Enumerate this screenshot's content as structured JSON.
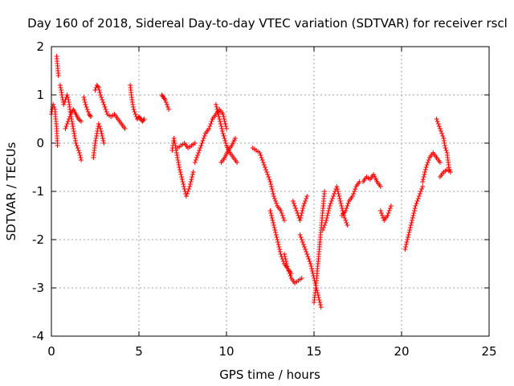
{
  "chart_data": {
    "type": "scatter",
    "title": "Day 160 of 2018, Sidereal Day-to-day VTEC variation (SDTVAR) for receiver rscl",
    "xlabel": "GPS time / hours",
    "ylabel": "SDTVAR / TECUs",
    "xlim": [
      0,
      25
    ],
    "ylim": [
      -4,
      2
    ],
    "xticks": [
      "0",
      "5",
      "10",
      "15",
      "20",
      "25"
    ],
    "yticks": [
      "2",
      "1",
      "0",
      "-1",
      "-2",
      "-3",
      "-4"
    ],
    "grid": true,
    "marker": "+",
    "color": "#ff0000",
    "segments": [
      {
        "x": [
          0.0,
          0.1,
          0.2,
          0.3,
          0.35
        ],
        "y": [
          0.6,
          0.8,
          0.7,
          0.3,
          -0.05
        ]
      },
      {
        "x": [
          0.3,
          0.35,
          0.4
        ],
        "y": [
          1.8,
          1.6,
          1.4
        ]
      },
      {
        "x": [
          0.5,
          0.6,
          0.7,
          0.8,
          0.9,
          1.0,
          1.1,
          1.2,
          1.3,
          1.4,
          1.5,
          1.6,
          1.7
        ],
        "y": [
          1.2,
          1.0,
          0.8,
          0.9,
          1.0,
          0.85,
          0.6,
          0.4,
          0.2,
          0.0,
          -0.1,
          -0.2,
          -0.35
        ]
      },
      {
        "x": [
          0.8,
          0.95,
          1.1,
          1.25,
          1.4,
          1.55,
          1.7
        ],
        "y": [
          0.3,
          0.45,
          0.6,
          0.7,
          0.6,
          0.5,
          0.45
        ]
      },
      {
        "x": [
          1.85,
          1.95,
          2.05,
          2.15,
          2.25
        ],
        "y": [
          0.95,
          0.8,
          0.7,
          0.6,
          0.55
        ]
      },
      {
        "x": [
          2.4,
          2.5,
          2.6,
          2.7,
          2.8,
          2.9,
          3.0
        ],
        "y": [
          -0.3,
          0.0,
          0.2,
          0.4,
          0.3,
          0.15,
          0.0
        ]
      },
      {
        "x": [
          2.5,
          2.6,
          2.7,
          2.8,
          2.9,
          3.0,
          3.1,
          3.2,
          3.4,
          3.6,
          3.8,
          4.0,
          4.2
        ],
        "y": [
          1.1,
          1.2,
          1.15,
          1.0,
          0.9,
          0.8,
          0.7,
          0.6,
          0.55,
          0.6,
          0.5,
          0.4,
          0.3
        ]
      },
      {
        "x": [
          4.5,
          4.6,
          4.7,
          4.8,
          4.9,
          5.0,
          5.1,
          5.2,
          5.3
        ],
        "y": [
          1.2,
          0.9,
          0.7,
          0.6,
          0.5,
          0.55,
          0.5,
          0.45,
          0.5
        ]
      },
      {
        "x": [
          6.3,
          6.4,
          6.5,
          6.6,
          6.7
        ],
        "y": [
          1.0,
          0.95,
          0.9,
          0.8,
          0.7
        ]
      },
      {
        "x": [
          6.9,
          7.0,
          7.1,
          7.2,
          7.3,
          7.5,
          7.7,
          7.9,
          8.1
        ],
        "y": [
          -0.15,
          0.1,
          -0.1,
          -0.3,
          -0.5,
          -0.8,
          -1.1,
          -0.9,
          -0.6
        ]
      },
      {
        "x": [
          7.2,
          7.4,
          7.6,
          7.8,
          8.0,
          8.2
        ],
        "y": [
          -0.1,
          -0.05,
          0.0,
          -0.1,
          -0.05,
          0.0
        ]
      },
      {
        "x": [
          8.2,
          8.4,
          8.6,
          8.8,
          9.0,
          9.2,
          9.4,
          9.6,
          9.8,
          10.0
        ],
        "y": [
          -0.4,
          -0.2,
          0.0,
          0.2,
          0.3,
          0.5,
          0.6,
          0.7,
          0.6,
          0.3
        ]
      },
      {
        "x": [
          9.4,
          9.6,
          9.8,
          10.0,
          10.2,
          10.4,
          10.6
        ],
        "y": [
          0.8,
          0.5,
          0.2,
          -0.05,
          -0.2,
          -0.3,
          -0.4
        ]
      },
      {
        "x": [
          9.7,
          9.9,
          10.1,
          10.3,
          10.5
        ],
        "y": [
          -0.4,
          -0.3,
          -0.15,
          -0.05,
          0.1
        ]
      },
      {
        "x": [
          11.5,
          11.7,
          11.9,
          12.1,
          12.3,
          12.5,
          12.7,
          12.9,
          13.1,
          13.3
        ],
        "y": [
          -0.1,
          -0.15,
          -0.2,
          -0.4,
          -0.6,
          -0.8,
          -1.1,
          -1.3,
          -1.4,
          -1.6
        ]
      },
      {
        "x": [
          12.5,
          12.7,
          12.9,
          13.1,
          13.3,
          13.5,
          13.7
        ],
        "y": [
          -1.4,
          -1.7,
          -2.0,
          -2.3,
          -2.5,
          -2.6,
          -2.7
        ]
      },
      {
        "x": [
          13.3,
          13.5,
          13.7,
          13.9,
          14.1,
          14.3
        ],
        "y": [
          -2.3,
          -2.6,
          -2.8,
          -2.9,
          -2.85,
          -2.8
        ]
      },
      {
        "x": [
          13.8,
          14.0,
          14.2,
          14.4,
          14.6
        ],
        "y": [
          -1.2,
          -1.4,
          -1.6,
          -1.3,
          -1.1
        ]
      },
      {
        "x": [
          14.2,
          14.4,
          14.6,
          14.8,
          15.0,
          15.2,
          15.4
        ],
        "y": [
          -1.9,
          -2.1,
          -2.3,
          -2.5,
          -2.8,
          -3.1,
          -3.4
        ]
      },
      {
        "x": [
          15.0,
          15.1,
          15.2,
          15.3,
          15.4,
          15.5,
          15.6
        ],
        "y": [
          -3.3,
          -3.0,
          -2.6,
          -2.2,
          -1.8,
          -1.4,
          -1.0
        ]
      },
      {
        "x": [
          15.5,
          15.7,
          15.9,
          16.1,
          16.3,
          16.5,
          16.7,
          16.9
        ],
        "y": [
          -1.8,
          -1.6,
          -1.3,
          -1.1,
          -0.9,
          -1.2,
          -1.5,
          -1.7
        ]
      },
      {
        "x": [
          16.6,
          16.8,
          17.0,
          17.2,
          17.4,
          17.6
        ],
        "y": [
          -1.5,
          -1.4,
          -1.2,
          -1.1,
          -0.9,
          -0.8
        ]
      },
      {
        "x": [
          17.8,
          18.0,
          18.2,
          18.4,
          18.6,
          18.8
        ],
        "y": [
          -0.8,
          -0.7,
          -0.75,
          -0.65,
          -0.8,
          -0.9
        ]
      },
      {
        "x": [
          18.8,
          19.0,
          19.2,
          19.4
        ],
        "y": [
          -1.4,
          -1.6,
          -1.5,
          -1.3
        ]
      },
      {
        "x": [
          20.2,
          20.4,
          20.6,
          20.8,
          21.0,
          21.2
        ],
        "y": [
          -2.2,
          -1.9,
          -1.6,
          -1.3,
          -1.1,
          -0.9
        ]
      },
      {
        "x": [
          21.2,
          21.4,
          21.6,
          21.8,
          22.0,
          22.2
        ],
        "y": [
          -0.8,
          -0.5,
          -0.3,
          -0.2,
          -0.3,
          -0.4
        ]
      },
      {
        "x": [
          22.0,
          22.1,
          22.2,
          22.3,
          22.4,
          22.5,
          22.6,
          22.7,
          22.8
        ],
        "y": [
          0.5,
          0.4,
          0.3,
          0.2,
          0.1,
          -0.1,
          -0.2,
          -0.5,
          -0.6
        ]
      },
      {
        "x": [
          22.2,
          22.4,
          22.6,
          22.8
        ],
        "y": [
          -0.7,
          -0.6,
          -0.55,
          -0.6
        ]
      }
    ]
  }
}
